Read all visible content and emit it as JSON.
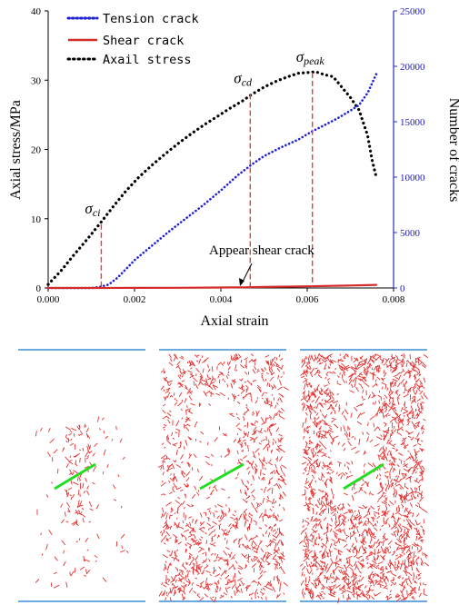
{
  "chart_data": {
    "type": "line",
    "xlabel": "Axial strain",
    "ylabel_left": "Axial stress/MPa",
    "ylabel_right": "Number of cracks",
    "xlim": [
      0,
      0.008
    ],
    "ylim_left": [
      0,
      40
    ],
    "ylim_right": [
      0,
      25000
    ],
    "x_ticks": [
      "0.000",
      "0.002",
      "0.004",
      "0.006",
      "0.008"
    ],
    "y_left_ticks": [
      "0",
      "10",
      "20",
      "30",
      "40"
    ],
    "y_right_ticks": [
      "0",
      "5000",
      "10000",
      "15000",
      "20000",
      "25000"
    ],
    "legend": {
      "position": "top-left",
      "entries": [
        "Tension crack",
        "Shear crack",
        "Axail stress"
      ]
    },
    "colors": {
      "tension": "#1f1fd6",
      "shear": "#d42a2a",
      "stress": "#000000",
      "right_axis": "#2b2bc7",
      "marker": "#e04040",
      "panel_border": "#6aa8e0",
      "panel_line": "#22dd22",
      "panel_crack": "#e63030"
    },
    "series": [
      {
        "name": "Axail stress",
        "axis": "left",
        "style": "dotted",
        "x": [
          0.0,
          0.0003,
          0.0006,
          0.0009,
          0.0012,
          0.0015,
          0.0018,
          0.0021,
          0.0024,
          0.0027,
          0.003,
          0.0033,
          0.0036,
          0.0039,
          0.0042,
          0.0045,
          0.0047,
          0.005,
          0.0053,
          0.0056,
          0.0058,
          0.006,
          0.0062,
          0.0064,
          0.0066,
          0.0068,
          0.007,
          0.0072,
          0.0074,
          0.0075,
          0.0076
        ],
        "y": [
          0.5,
          2.5,
          4.8,
          7.0,
          9.3,
          11.7,
          14.0,
          16.0,
          17.7,
          19.3,
          20.8,
          22.2,
          23.5,
          24.7,
          25.9,
          27.0,
          27.9,
          29.0,
          29.9,
          30.6,
          31.0,
          31.1,
          31.2,
          30.8,
          30.5,
          29.0,
          27.5,
          25.7,
          22.0,
          18.5,
          16.0
        ]
      },
      {
        "name": "Tension crack",
        "axis": "right",
        "style": "dotted",
        "x": [
          0.0,
          0.001,
          0.0012,
          0.0014,
          0.0016,
          0.0018,
          0.002,
          0.0024,
          0.0028,
          0.0032,
          0.0036,
          0.004,
          0.0044,
          0.0047,
          0.005,
          0.0054,
          0.0058,
          0.0061,
          0.0064,
          0.0067,
          0.007,
          0.0072,
          0.0074,
          0.0076
        ],
        "y": [
          0,
          0,
          100,
          300,
          900,
          1700,
          2500,
          3800,
          5100,
          6300,
          7500,
          8800,
          10200,
          11100,
          11900,
          12700,
          13400,
          14100,
          14700,
          15300,
          16000,
          16500,
          17600,
          19300
        ]
      },
      {
        "name": "Shear crack",
        "axis": "right",
        "style": "solid",
        "x": [
          0.0,
          0.0012,
          0.002,
          0.003,
          0.004,
          0.0045,
          0.005,
          0.006,
          0.007,
          0.0076
        ],
        "y": [
          0,
          0,
          10,
          20,
          40,
          60,
          90,
          150,
          220,
          280
        ]
      }
    ],
    "markers": [
      {
        "label": "σ",
        "subscript": "ci",
        "x": 0.00123,
        "y": 9.2
      },
      {
        "label": "σ",
        "subscript": "cd",
        "x": 0.00468,
        "y": 28.0
      },
      {
        "label": "σ",
        "subscript": "peak",
        "x": 0.00612,
        "y": 31.1
      }
    ],
    "annotation": {
      "text": "Appear shear crack",
      "x": 0.0045,
      "y": 1.0
    }
  },
  "panels": [
    {
      "stage": "ci",
      "density": 0.06
    },
    {
      "stage": "cd",
      "density": 0.6
    },
    {
      "stage": "peak",
      "density": 1.0
    }
  ]
}
